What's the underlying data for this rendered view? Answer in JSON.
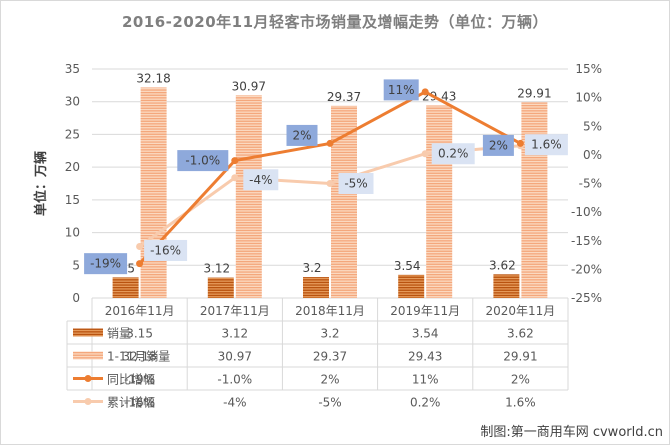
{
  "title": "2016-2020年11月轻客市场销量及增幅走势（单位：万辆）",
  "credit": "制图:第一商用车网 cvworld.cn",
  "chart_data": {
    "type": "bar",
    "categories": [
      "2016年11月",
      "2017年11月",
      "2018年11月",
      "2019年11月",
      "2020年11月"
    ],
    "ylabel": "单位：万辆",
    "ylim": [
      0,
      35
    ],
    "y_ticks": [
      "0",
      "5",
      "10",
      "15",
      "20",
      "25",
      "30",
      "35"
    ],
    "y2lim": [
      -25,
      15
    ],
    "y2_ticks": [
      "-25%",
      "-20%",
      "-15%",
      "-10%",
      "-5%",
      "0%",
      "5%",
      "10%",
      "15%"
    ],
    "series": [
      {
        "name": "销量",
        "type": "bar",
        "axis": "left",
        "color": "#c55a11",
        "values": [
          3.15,
          3.12,
          3.2,
          3.54,
          3.62
        ],
        "labels": [
          "3.15",
          "3.12",
          "3.2",
          "3.54",
          "3.62"
        ]
      },
      {
        "name": "1-11月销量",
        "type": "bar",
        "axis": "left",
        "color": "#f4b183",
        "values": [
          32.18,
          30.97,
          29.37,
          29.43,
          29.91
        ],
        "labels": [
          "32.18",
          "30.97",
          "29.37",
          "29.43",
          "29.91"
        ]
      },
      {
        "name": "同比增幅",
        "type": "line",
        "axis": "right",
        "color": "#ed7d31",
        "values": [
          -19,
          -1.0,
          2,
          11,
          2
        ],
        "labels": [
          "-19%",
          "-1.0%",
          "2%",
          "11%",
          "2%"
        ]
      },
      {
        "name": "累计增幅",
        "type": "line",
        "axis": "right",
        "color": "#f8cbad",
        "values": [
          -16,
          -4,
          -5,
          0.2,
          1.6
        ],
        "labels": [
          "-16%",
          "-4%",
          "-5%",
          "0.2%",
          "1.6%"
        ]
      }
    ],
    "legend": "data table below the chart"
  }
}
